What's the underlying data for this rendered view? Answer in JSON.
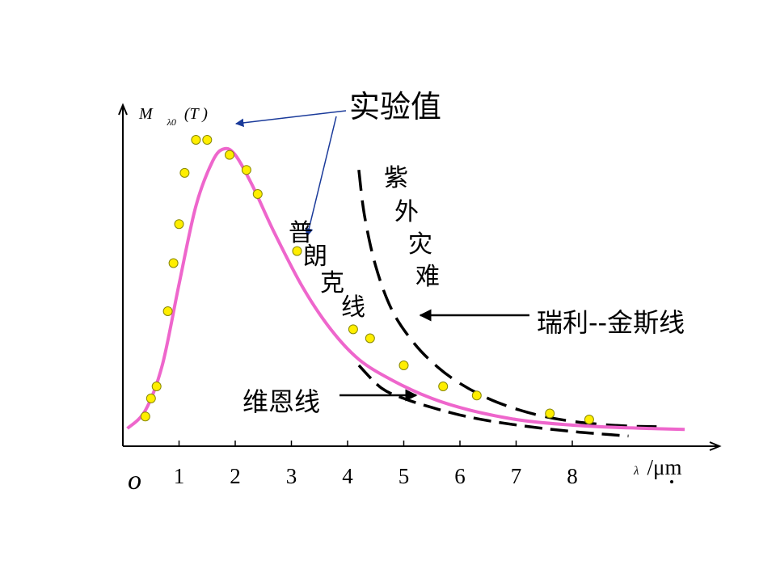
{
  "chart_data": {
    "type": "line",
    "title": "",
    "ylabel": {
      "main": "M",
      "sub": "λ0",
      "arg": "(T )"
    },
    "xlabel": {
      "symbol": "λ",
      "unit": "/μm"
    },
    "origin_label": "o",
    "x_ticks": [
      "1",
      "2",
      "3",
      "4",
      "5",
      "6",
      "7",
      "8"
    ],
    "xlim": [
      0,
      10
    ],
    "series": [
      {
        "role": "planck",
        "color": "#ee66cc",
        "style": "solid",
        "x": [
          0.08,
          0.4,
          0.7,
          1.0,
          1.3,
          1.6,
          1.8,
          2.0,
          2.3,
          2.7,
          3.2,
          3.7,
          4.2,
          4.8,
          5.5,
          6.2,
          7.0,
          7.8,
          8.6,
          9.4,
          10.0
        ],
        "y": [
          0.04,
          0.1,
          0.25,
          0.52,
          0.78,
          0.93,
          0.97,
          0.95,
          0.85,
          0.69,
          0.51,
          0.37,
          0.27,
          0.2,
          0.14,
          0.1,
          0.07,
          0.054,
          0.045,
          0.04,
          0.037
        ]
      },
      {
        "role": "wien",
        "color": "#000000",
        "style": "dashed",
        "x": [
          4.2,
          4.6,
          5.0,
          5.5,
          6.0,
          6.5,
          7.0,
          7.5,
          8.0,
          8.5,
          9.0
        ],
        "y": [
          0.25,
          0.175,
          0.14,
          0.11,
          0.085,
          0.066,
          0.052,
          0.04,
          0.03,
          0.022,
          0.015
        ]
      },
      {
        "role": "rayleigh_jeans",
        "color": "#000000",
        "style": "dashed",
        "x": [
          4.2,
          4.3,
          4.5,
          4.8,
          5.2,
          5.6,
          6.0,
          6.5,
          7.0,
          7.5,
          8.0,
          8.5,
          9.0,
          9.5
        ],
        "y": [
          0.9,
          0.75,
          0.58,
          0.43,
          0.32,
          0.245,
          0.19,
          0.14,
          0.105,
          0.08,
          0.064,
          0.054,
          0.048,
          0.046
        ]
      }
    ],
    "experimental_points": {
      "color": "#ffee00",
      "x": [
        0.4,
        0.5,
        0.6,
        0.8,
        0.9,
        1.0,
        1.1,
        1.3,
        1.5,
        1.9,
        2.2,
        2.4,
        3.1,
        4.1,
        4.4,
        5.0,
        5.7,
        6.3,
        7.6,
        8.3
      ],
      "y": [
        0.08,
        0.14,
        0.18,
        0.43,
        0.59,
        0.72,
        0.89,
        1.0,
        1.0,
        0.95,
        0.9,
        0.82,
        0.63,
        0.37,
        0.34,
        0.25,
        0.18,
        0.15,
        0.09,
        0.07
      ]
    }
  },
  "annotations": {
    "experimental": "实验值",
    "planck": "普朗克线",
    "wien": "维恩线",
    "uv_catastrophe": "紫外灾难",
    "rayleigh_jeans": "瑞利--金斯线"
  }
}
